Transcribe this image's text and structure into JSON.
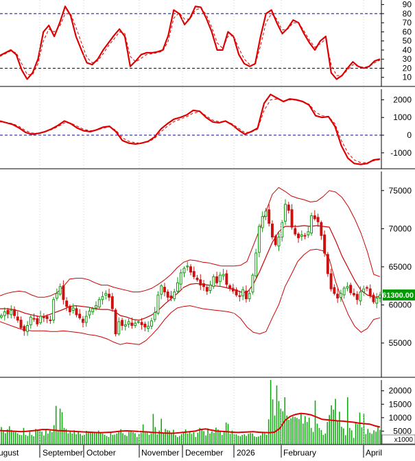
{
  "colors": {
    "up": "#119911",
    "down": "#cc1111",
    "main_line": "#dd0000",
    "signal_line": "#dd0000",
    "band": "#cc0000",
    "guide": "#0000aa",
    "volume_bar": "#11aa11",
    "volume_ma": "#dd0000",
    "price_badge": "#009900",
    "frame": "#000000"
  },
  "x_axis": {
    "labels": [
      "ugust",
      "September",
      "October",
      "November",
      "December",
      "2026",
      "February",
      "April"
    ]
  },
  "chart_data": [
    {
      "type": "line",
      "name_hint": "stochastic-oscillator",
      "ylim": [
        0,
        95
      ],
      "y_ticks": [
        10,
        20,
        30,
        40,
        50,
        60,
        70,
        80,
        90
      ],
      "guides": [
        20,
        80
      ],
      "series": [
        {
          "role": "main",
          "values": [
            34,
            37,
            40,
            35,
            18,
            8,
            15,
            30,
            60,
            67,
            55,
            70,
            88,
            78,
            55,
            40,
            26,
            24,
            30,
            40,
            48,
            56,
            63,
            55,
            22,
            28,
            35,
            37,
            37,
            38,
            40,
            56,
            84,
            80,
            68,
            75,
            88,
            87,
            75,
            60,
            40,
            40,
            60,
            55,
            35,
            25,
            22,
            25,
            55,
            80,
            84,
            70,
            58,
            64,
            73,
            70,
            58,
            48,
            40,
            50,
            55,
            15,
            8,
            12,
            20,
            27,
            22,
            20,
            22,
            28,
            30
          ]
        },
        {
          "role": "signal",
          "values": [
            33,
            36,
            39,
            37,
            25,
            13,
            13,
            25,
            50,
            63,
            60,
            66,
            80,
            80,
            65,
            48,
            32,
            26,
            28,
            36,
            45,
            52,
            60,
            58,
            33,
            27,
            31,
            35,
            36,
            37,
            39,
            50,
            75,
            81,
            74,
            74,
            84,
            86,
            79,
            65,
            48,
            42,
            55,
            56,
            42,
            30,
            24,
            24,
            45,
            70,
            80,
            74,
            62,
            63,
            70,
            70,
            61,
            51,
            43,
            47,
            52,
            24,
            12,
            12,
            18,
            24,
            22,
            21,
            22,
            26,
            29
          ]
        }
      ]
    },
    {
      "type": "line",
      "name_hint": "momentum-oscillator",
      "ylim": [
        -1900,
        2600
      ],
      "y_ticks": [
        -1000,
        0,
        1000,
        2000
      ],
      "guides": [
        0
      ],
      "series": [
        {
          "role": "main",
          "values": [
            800,
            700,
            600,
            400,
            150,
            50,
            100,
            200,
            350,
            550,
            800,
            650,
            400,
            250,
            200,
            300,
            450,
            500,
            200,
            -300,
            -450,
            -500,
            -450,
            -350,
            -100,
            350,
            650,
            900,
            1000,
            1150,
            1400,
            1350,
            1000,
            750,
            700,
            800,
            600,
            300,
            50,
            200,
            400,
            1800,
            2300,
            2100,
            1900,
            2050,
            2000,
            1900,
            1700,
            1100,
            1000,
            1050,
            500,
            -600,
            -1300,
            -1600,
            -1650,
            -1600,
            -1400,
            -1350
          ]
        },
        {
          "role": "signal",
          "values": [
            750,
            720,
            650,
            480,
            250,
            120,
            110,
            180,
            310,
            480,
            700,
            680,
            500,
            330,
            250,
            280,
            400,
            470,
            280,
            -150,
            -350,
            -430,
            -450,
            -380,
            -180,
            200,
            500,
            760,
            900,
            1050,
            1250,
            1320,
            1100,
            850,
            760,
            780,
            650,
            400,
            150,
            170,
            340,
            1400,
            2000,
            2050,
            1950,
            2000,
            1980,
            1900,
            1750,
            1300,
            1100,
            1060,
            650,
            -300,
            -1000,
            -1400,
            -1550,
            -1550,
            -1450,
            -1380
          ]
        }
      ]
    },
    {
      "type": "candlestick",
      "name_hint": "price",
      "ylim": [
        50500,
        77500
      ],
      "y_ticks": [
        55000,
        60000,
        65000,
        70000,
        75000
      ],
      "last_price_label": "61300.00",
      "last_price": 61300,
      "closes": [
        58600,
        59100,
        58800,
        59300,
        58600,
        58000,
        57000,
        56600,
        57300,
        58400,
        58200,
        57500,
        58500,
        58400,
        58200,
        58000,
        60700,
        61500,
        62400,
        60700,
        59800,
        59100,
        59600,
        58700,
        58300,
        57700,
        58500,
        59200,
        59500,
        59900,
        60700,
        61100,
        61500,
        61000,
        59500,
        56200,
        57800,
        57300,
        57400,
        57800,
        57300,
        57600,
        57800,
        57400,
        57100,
        57200,
        57900,
        59000,
        61300,
        62500,
        61700,
        61000,
        60900,
        61700,
        62900,
        64200,
        64800,
        65100,
        64300,
        63700,
        63300,
        62600,
        62400,
        61800,
        62600,
        63700,
        62900,
        63900,
        64000,
        62700,
        62200,
        61800,
        61300,
        61100,
        62000,
        60800,
        61500,
        63900,
        66800,
        70300,
        71600,
        72300,
        70700,
        68900,
        67900,
        68900,
        70800,
        73200,
        72400,
        70200,
        69300,
        68800,
        69200,
        69100,
        69600,
        71700,
        71300,
        70900,
        69100,
        66800,
        64100,
        62100,
        61500,
        60900,
        61500,
        62200,
        62400,
        61600,
        61300,
        60700,
        61700,
        62100,
        62200,
        61200,
        60400,
        60900,
        61300
      ],
      "bollinger": {
        "upper": [
          61200,
          61500,
          61700,
          61800,
          61700,
          61300,
          61000,
          61000,
          61200,
          61600,
          62400,
          63400,
          63500,
          63500,
          63300,
          62900,
          62600,
          62600,
          62300,
          62100,
          61900,
          61700,
          61700,
          61900,
          62200,
          62700,
          63300,
          64000,
          64900,
          65600,
          65900,
          65800,
          65600,
          65500,
          65300,
          65100,
          65100,
          65100,
          65200,
          65700,
          67800,
          69900,
          72300,
          74500,
          75400,
          74900,
          74300,
          74000,
          73800,
          73500,
          73600,
          74200,
          75000,
          74800,
          74100,
          72900,
          71300,
          69400,
          67000,
          64000,
          63700
        ],
        "middle": [
          59500,
          59500,
          59400,
          59200,
          58900,
          58700,
          58500,
          58500,
          58800,
          59100,
          59400,
          59800,
          59900,
          59800,
          59700,
          59500,
          59400,
          59400,
          59200,
          58600,
          58400,
          58100,
          58000,
          58300,
          58700,
          59300,
          60100,
          60800,
          61500,
          62300,
          62700,
          62800,
          62700,
          62600,
          62500,
          62400,
          62200,
          62000,
          61700,
          61600,
          62700,
          64400,
          66300,
          68200,
          69600,
          70300,
          70300,
          70300,
          70400,
          70300,
          70400,
          70300,
          70200,
          68400,
          66400,
          64800,
          63200,
          61900,
          61300,
          61000,
          61100
        ],
        "lower": [
          57800,
          57500,
          57200,
          56900,
          56700,
          56600,
          56600,
          56600,
          56500,
          56500,
          56600,
          56500,
          56400,
          56300,
          56100,
          56000,
          55800,
          55500,
          55100,
          54800,
          55000,
          54900,
          54800,
          55300,
          56100,
          57000,
          58100,
          59000,
          59600,
          59800,
          59900,
          59700,
          59500,
          59400,
          59300,
          59200,
          59100,
          58900,
          58200,
          57100,
          56400,
          56200,
          56500,
          58300,
          60000,
          62400,
          64000,
          65700,
          66600,
          67200,
          67300,
          67100,
          66000,
          63000,
          60700,
          58700,
          57200,
          56400,
          56900,
          58100,
          58300
        ]
      }
    },
    {
      "type": "bar",
      "name_hint": "volume",
      "ylim": [
        0,
        24000
      ],
      "y_ticks": [
        5000,
        10000,
        15000,
        20000
      ],
      "unit_label": "x1000",
      "values": [
        6500,
        5000,
        4200,
        5600,
        6800,
        5400,
        5000,
        4600,
        4200,
        3600,
        3500,
        6200,
        3600,
        3200,
        4800,
        3600,
        3100,
        5800,
        5200,
        5600,
        4800,
        3400,
        5500,
        4100,
        5200,
        4600,
        7200,
        14400,
        5200,
        13400,
        12000,
        6200,
        5800,
        4200,
        5200,
        4100,
        5300,
        3800,
        4900,
        4000,
        3400,
        3600,
        5100,
        4900,
        4500,
        4400,
        4400,
        4200,
        5200,
        4700,
        4100,
        3600,
        3200,
        2800,
        4600,
        3600,
        3700,
        4100,
        4600,
        5700,
        4200,
        3600,
        3200,
        4800,
        5200,
        4600,
        4200,
        2800,
        3900,
        4400,
        7500,
        4600,
        4600,
        3600,
        4200,
        11400,
        6500,
        3800,
        5200,
        9600,
        4400,
        5800,
        5400,
        5200,
        4300,
        5500,
        3500,
        2800,
        3200,
        3900,
        4400,
        5600,
        4100,
        4900,
        4000,
        4600,
        2800,
        4400,
        6200,
        5800,
        5000,
        3400,
        6000,
        4100,
        4900,
        4400,
        6300,
        5600,
        5100,
        3600,
        5100,
        8200,
        7700,
        4000,
        5200,
        3800,
        3800,
        3300,
        3100,
        3600,
        3800,
        3200,
        4000,
        4300,
        4100,
        3000,
        2800,
        3000,
        3400,
        4400,
        4200,
        3600,
        9400,
        24000,
        16800,
        10800,
        22000,
        16200,
        13400,
        12400,
        17600,
        10800,
        9200,
        9700,
        10400,
        10200,
        9900,
        9500,
        11600,
        7800,
        10600,
        8400,
        10000,
        6200,
        4700,
        16400,
        7800,
        6200,
        5400,
        3600,
        4100,
        8400,
        11000,
        14600,
        13000,
        17000,
        8600,
        12200,
        6600,
        6000,
        3500,
        17600,
        6200,
        5300,
        2500,
        8300,
        7600,
        11900,
        6400,
        11500,
        3900,
        5800,
        4400,
        4000,
        5300,
        4800,
        6700,
        5500
      ],
      "ma": [
        5200,
        5100,
        5000,
        4900,
        4800,
        4900,
        5100,
        5300,
        5600,
        5600,
        5400,
        5200,
        5100,
        5000,
        4900,
        4800,
        4700,
        4600,
        4500,
        4400,
        4500,
        4600,
        4800,
        5000,
        5100,
        5000,
        4900,
        4800,
        4700,
        4500,
        4400,
        4300,
        4200,
        4200,
        4400,
        4600,
        4800,
        5000,
        5600,
        5800,
        5400,
        5000,
        4900,
        4800,
        4600,
        4500,
        4600,
        4700,
        4800,
        4600,
        4500,
        4400,
        4600,
        6000,
        9000,
        10500,
        11200,
        11600,
        11400,
        11000,
        10200,
        9400,
        9200,
        9000,
        8800,
        8700,
        8500,
        8300,
        8000,
        7800,
        7600,
        7000,
        6500
      ]
    }
  ]
}
